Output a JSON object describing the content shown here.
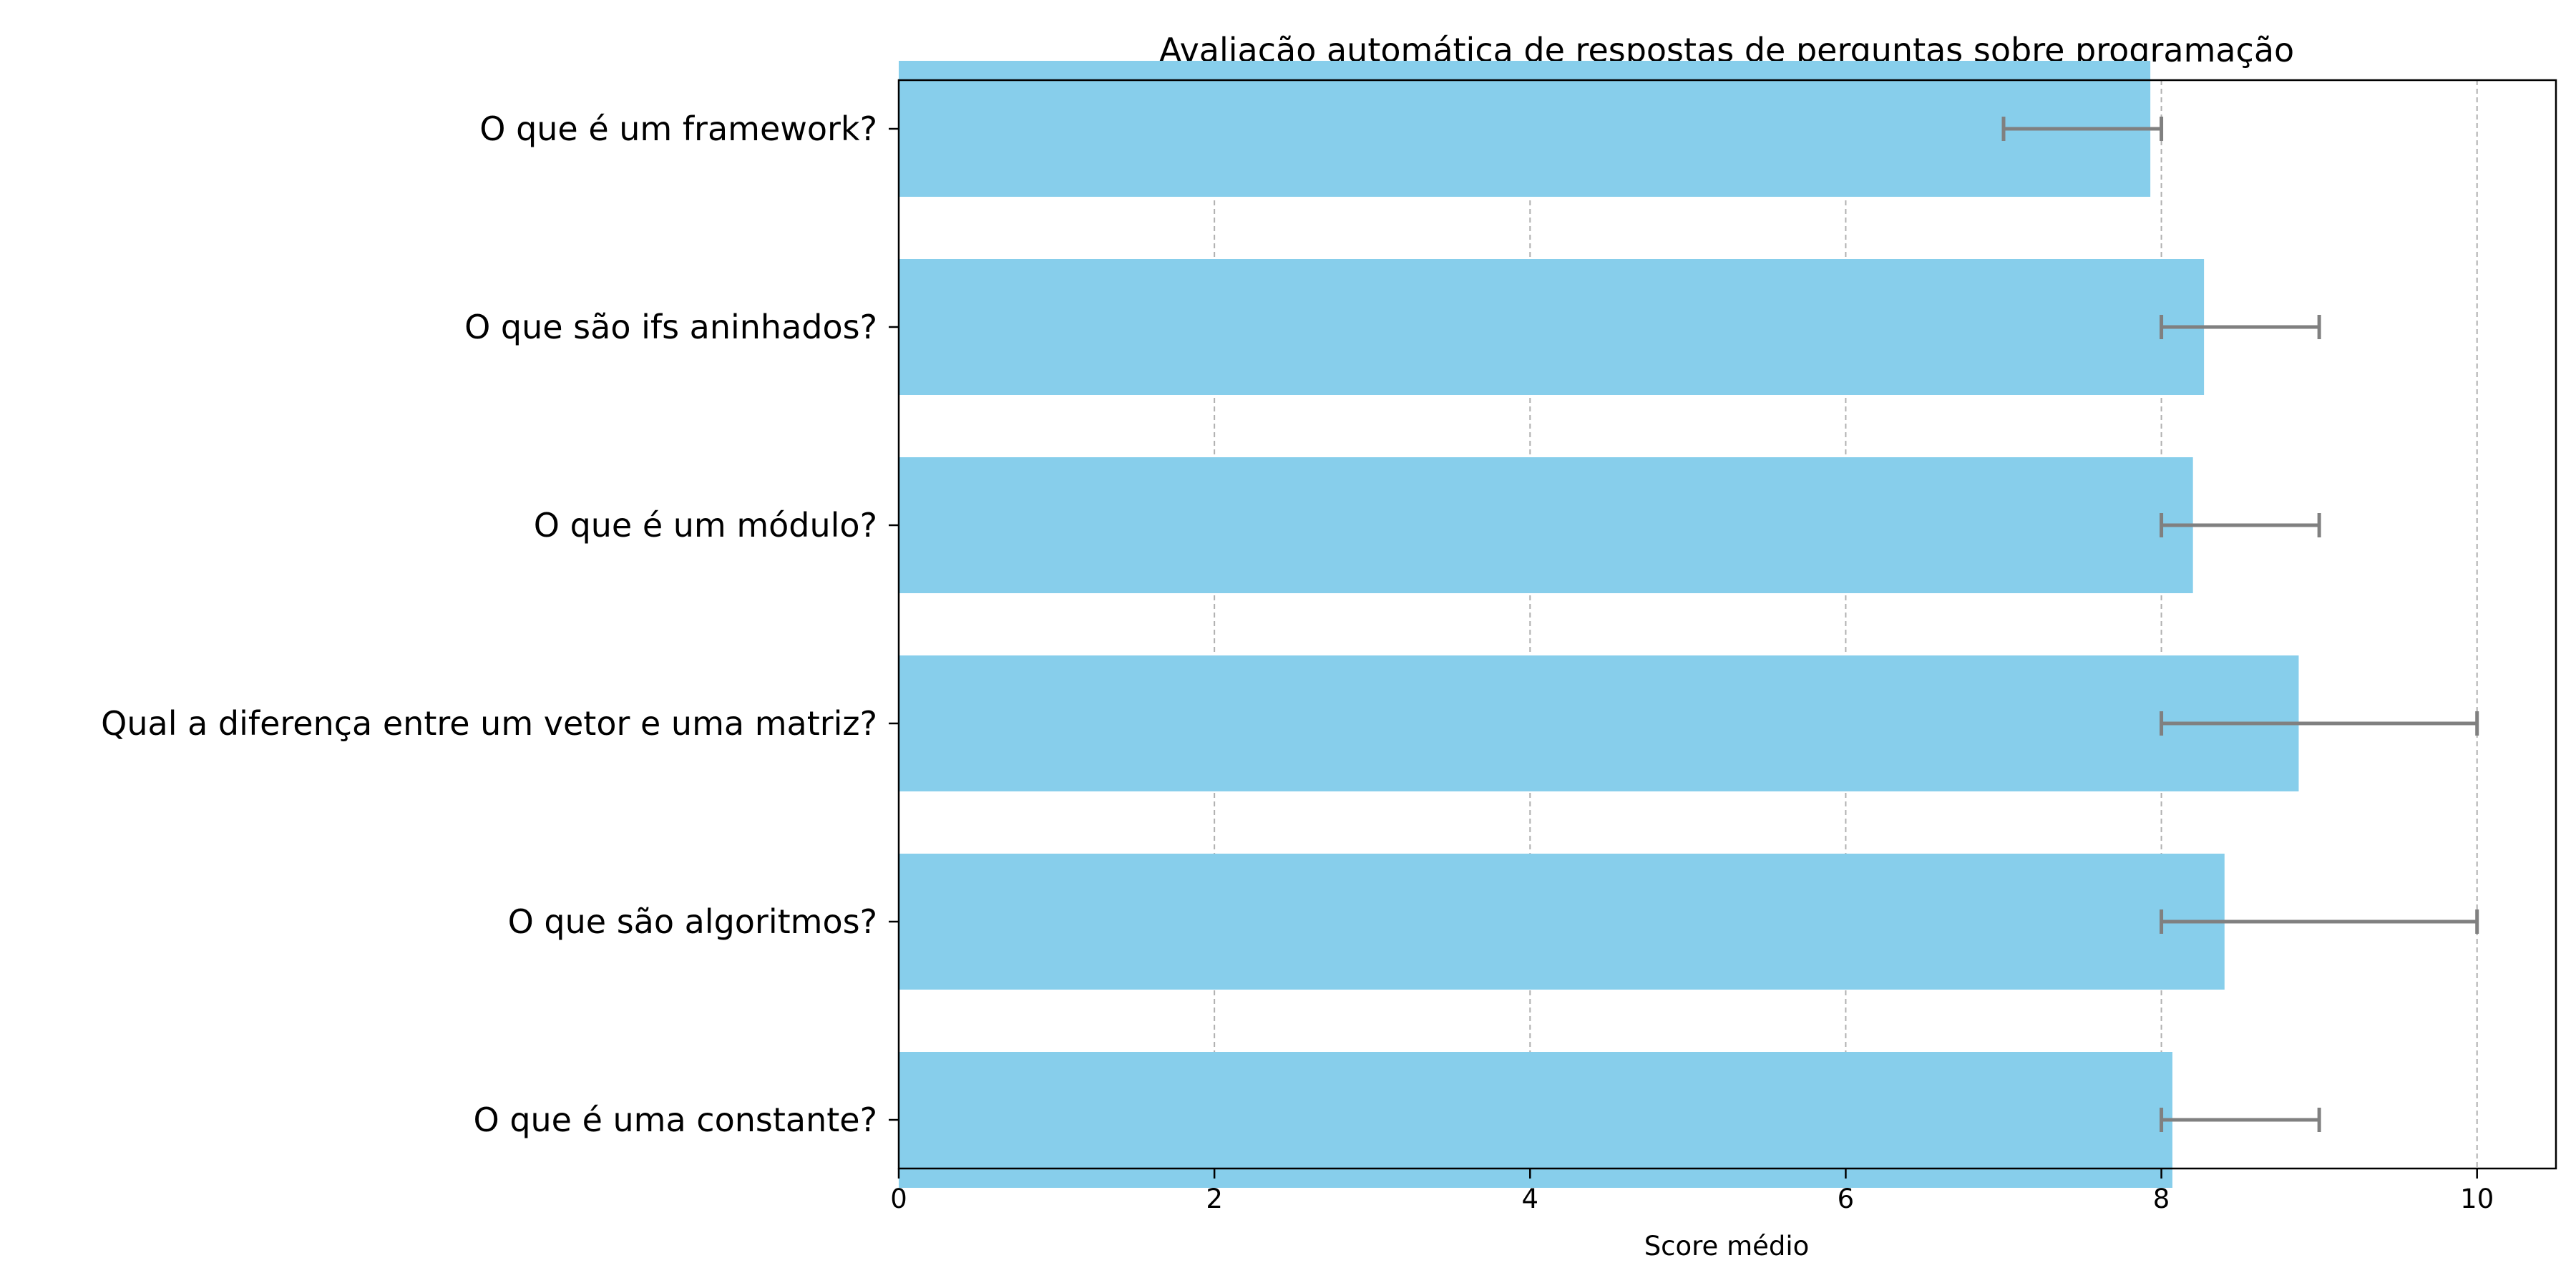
{
  "chart_data": {
    "type": "bar",
    "orientation": "horizontal",
    "title": "Avaliação automática de respostas de perguntas sobre programação",
    "xlabel": "Score médio",
    "ylabel": "",
    "xlim": [
      0,
      10.5
    ],
    "xticks": [
      0,
      2,
      4,
      6,
      8,
      10
    ],
    "grid": "x-dashed",
    "categories": [
      "O que é um framework?",
      "O que são ifs aninhados?",
      "O que é um módulo?",
      "Qual a diferença entre um vetor e uma matriz?",
      "O que são algoritmos?",
      "O que é uma constante?"
    ],
    "values": [
      7.93,
      8.27,
      8.2,
      8.87,
      8.4,
      8.07
    ],
    "error_low": [
      7,
      8,
      8,
      8,
      8,
      8
    ],
    "error_high": [
      8,
      9,
      9,
      10,
      10,
      9
    ],
    "bar_color": "#87ceeb",
    "error_color": "#808080"
  }
}
